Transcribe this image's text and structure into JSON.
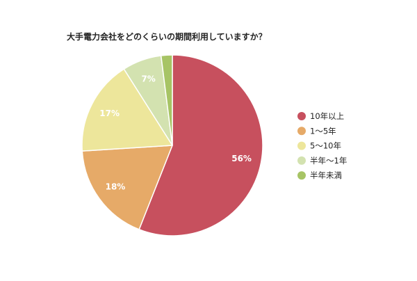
{
  "chart_data": {
    "type": "pie",
    "title": "大手電力会社をどのくらいの期間利用していますか？",
    "slices": [
      {
        "label": "10年以上",
        "value": 56,
        "display": "56%",
        "color": "#c7505e"
      },
      {
        "label": "1〜5年",
        "value": 18,
        "display": "18%",
        "color": "#e6aa68"
      },
      {
        "label": "5〜10年",
        "value": 17,
        "display": "17%",
        "color": "#ede69b"
      },
      {
        "label": "半年〜1年",
        "value": 7,
        "display": "7%",
        "color": "#d3e2b0"
      },
      {
        "label": "半年未満",
        "value": 2,
        "display": "",
        "color": "#a7c465"
      }
    ],
    "legend_position": "right",
    "start_angle": "12 o'clock",
    "direction": "clockwise"
  }
}
